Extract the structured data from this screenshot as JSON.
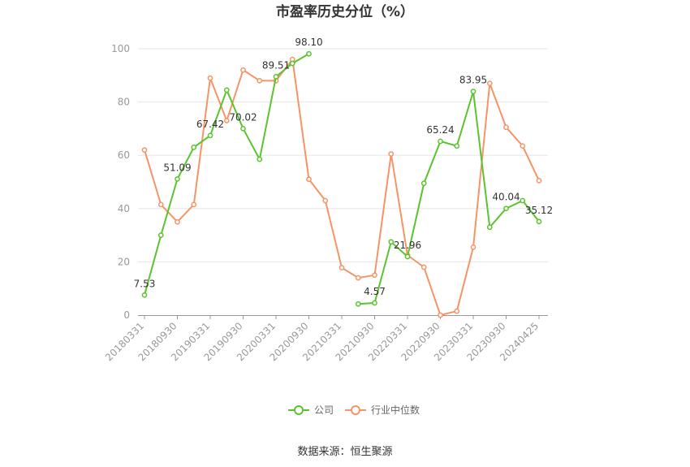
{
  "chart_data": {
    "type": "line",
    "title": "市盈率历史分位（%）",
    "xlabel": "",
    "ylabel": "",
    "ylim": [
      0,
      100
    ],
    "yticks": [
      0,
      20,
      40,
      60,
      80,
      100
    ],
    "categories": [
      "20180331",
      "20180630",
      "20180930",
      "20181231",
      "20190331",
      "20190630",
      "20190930",
      "20191231",
      "20200331",
      "20200630",
      "20200930",
      "20201231",
      "20210331",
      "20210630",
      "20210930",
      "20211231",
      "20220331",
      "20220630",
      "20220930",
      "20221231",
      "20230331",
      "20230630",
      "20230930",
      "20231231",
      "20240425"
    ],
    "xtick_labels": [
      "20180331",
      "20180930",
      "20190331",
      "20190930",
      "20200331",
      "20200930",
      "20210331",
      "20210930",
      "20220331",
      "20220930",
      "20230331",
      "20230930",
      "20240425"
    ],
    "series": [
      {
        "name": "公司",
        "color": "#5ac42e",
        "values": [
          7.53,
          30,
          51.09,
          63,
          67.42,
          84.5,
          70.02,
          58.5,
          89.51,
          94.5,
          98.1,
          null,
          null,
          4.2,
          4.57,
          27.5,
          21.96,
          49.5,
          65.24,
          63.5,
          83.95,
          33,
          40.04,
          43,
          35.12
        ],
        "labels": [
          {
            "index": 0,
            "text": "7.53"
          },
          {
            "index": 2,
            "text": "51.09"
          },
          {
            "index": 4,
            "text": "67.42"
          },
          {
            "index": 6,
            "text": "70.02"
          },
          {
            "index": 8,
            "text": "89.51"
          },
          {
            "index": 10,
            "text": "98.10"
          },
          {
            "index": 14,
            "text": "4.57"
          },
          {
            "index": 16,
            "text": "21.96"
          },
          {
            "index": 18,
            "text": "65.24"
          },
          {
            "index": 20,
            "text": "83.95"
          },
          {
            "index": 22,
            "text": "40.04"
          },
          {
            "index": 24,
            "text": "35.12"
          }
        ]
      },
      {
        "name": "行业中位数",
        "color": "#f59466",
        "values": [
          62,
          41.5,
          35,
          41.5,
          89,
          73,
          92,
          88,
          88,
          96,
          51,
          43,
          17.8,
          14,
          15,
          60.5,
          22.5,
          18,
          0,
          1.5,
          25.5,
          87,
          70.5,
          63.5,
          50.5
        ],
        "labels": []
      }
    ],
    "legend": {
      "position": "bottom-center"
    },
    "grid": true
  },
  "source_text": "数据来源：恒生聚源"
}
